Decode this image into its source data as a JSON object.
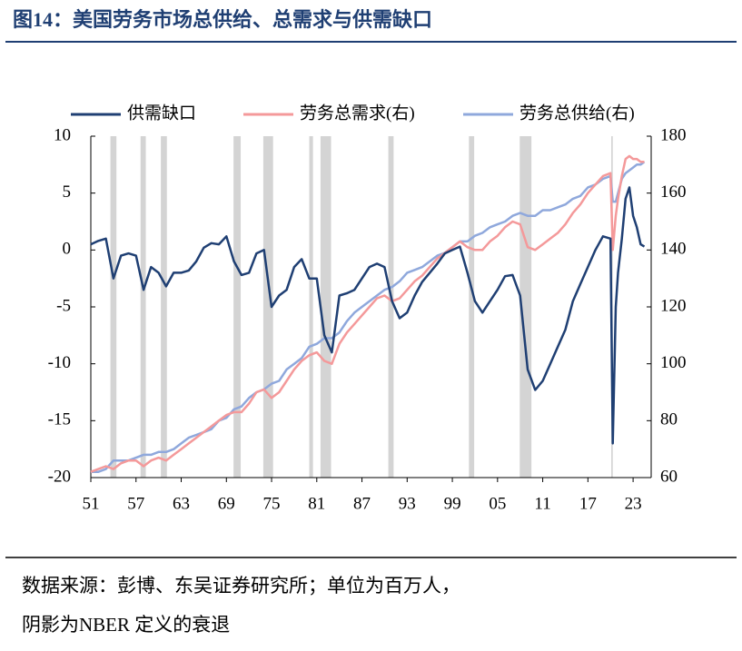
{
  "chart_data": {
    "type": "line",
    "title": "图14：美国劳务市场总供给、总需求与供需缺口",
    "source": "数据来源：彭博、东吴证券研究所；单位为百万人，",
    "source_note": "阴影为NBER 定义的衰退",
    "x": [
      1951,
      1952,
      1953,
      1954,
      1955,
      1956,
      1957,
      1958,
      1959,
      1960,
      1961,
      1962,
      1963,
      1964,
      1965,
      1966,
      1967,
      1968,
      1969,
      1970,
      1971,
      1972,
      1973,
      1974,
      1975,
      1976,
      1977,
      1978,
      1979,
      1980,
      1981,
      1982,
      1983,
      1984,
      1985,
      1986,
      1987,
      1988,
      1989,
      1990,
      1991,
      1992,
      1993,
      1994,
      1995,
      1996,
      1997,
      1998,
      1999,
      2000,
      2001,
      2002,
      2003,
      2004,
      2005,
      2006,
      2007,
      2008,
      2009,
      2010,
      2011,
      2012,
      2013,
      2014,
      2015,
      2016,
      2017,
      2018,
      2019,
      2020,
      2020.3,
      2020.7,
      2021,
      2021.5,
      2022,
      2022.5,
      2023,
      2023.5,
      2024,
      2024.5
    ],
    "series": [
      {
        "name": "供需缺口",
        "color": "#1f3f73",
        "axis": "y",
        "values": [
          0.5,
          0.8,
          1,
          -2.5,
          -0.5,
          -0.3,
          -0.5,
          -3.5,
          -1.5,
          -2,
          -3.2,
          -2,
          -2,
          -1.8,
          -1,
          0.2,
          0.6,
          0.5,
          1.2,
          -1,
          -2.2,
          -2,
          -0.3,
          0,
          -5,
          -4,
          -3.5,
          -1.5,
          -0.8,
          -2.5,
          -2.5,
          -7.5,
          -9,
          -4,
          -3.8,
          -3.5,
          -2.5,
          -1.5,
          -1.2,
          -1.5,
          -4.5,
          -6,
          -5.5,
          -4,
          -2.8,
          -2,
          -1.2,
          -0.3,
          0,
          0.3,
          -2,
          -4.5,
          -5.5,
          -4.5,
          -3.5,
          -2.3,
          -2.2,
          -4,
          -10.5,
          -12.3,
          -11.5,
          -10,
          -8.5,
          -7,
          -4.5,
          -3,
          -1.5,
          0,
          1.2,
          1,
          -17,
          -5,
          -2,
          1,
          4.5,
          5.5,
          3,
          2,
          0.5,
          0.3
        ]
      },
      {
        "name": "劳务总需求(右)",
        "color": "#f4999a",
        "axis": "y2",
        "values": [
          62,
          63,
          64,
          63,
          65,
          66,
          66,
          64,
          66,
          67,
          66,
          68,
          70,
          72,
          74,
          76,
          78,
          80,
          82,
          83,
          83,
          86,
          90,
          91,
          88,
          90,
          94,
          98,
          101,
          103,
          104,
          101,
          100,
          107,
          111,
          114,
          117,
          120,
          123,
          124,
          122,
          123,
          126,
          129,
          131,
          134,
          137,
          139,
          141,
          143,
          141,
          140,
          140,
          143,
          145,
          148,
          150,
          149,
          141,
          140,
          142,
          144,
          146,
          149,
          153,
          156,
          160,
          163,
          166,
          167,
          140,
          152,
          158,
          166,
          172,
          173,
          172,
          172,
          171,
          171
        ]
      },
      {
        "name": "劳务总供给(右)",
        "color": "#8fa8dc",
        "axis": "y2",
        "values": [
          62,
          62,
          63,
          66,
          66,
          66,
          67,
          68,
          68,
          69,
          69,
          70,
          72,
          74,
          75,
          76,
          77,
          80,
          81,
          84,
          85,
          88,
          90,
          91,
          93,
          94,
          98,
          100,
          102,
          106,
          107,
          109,
          109,
          111,
          115,
          118,
          120,
          122,
          124,
          126,
          127,
          129,
          132,
          133,
          134,
          136,
          138,
          139,
          141,
          143,
          143,
          145,
          146,
          148,
          149,
          150,
          152,
          153,
          152,
          152,
          154,
          154,
          155,
          156,
          158,
          159,
          162,
          163,
          165,
          166,
          157,
          157,
          160,
          165,
          167,
          168,
          169,
          170,
          170,
          171
        ]
      }
    ],
    "recessions": [
      [
        1953.6,
        1954.4
      ],
      [
        1957.6,
        1958.3
      ],
      [
        1960.3,
        1961.1
      ],
      [
        1969.95,
        1970.9
      ],
      [
        1973.9,
        1975.2
      ],
      [
        1980.0,
        1980.5
      ],
      [
        1981.5,
        1982.9
      ],
      [
        1990.5,
        1991.2
      ],
      [
        2001.2,
        2001.9
      ],
      [
        2007.95,
        2009.5
      ],
      [
        2020.1,
        2020.3
      ]
    ],
    "xlim": [
      1951,
      2025.4
    ],
    "xticks": [
      {
        "value": 1951,
        "label": "51"
      },
      {
        "value": 1957,
        "label": "57"
      },
      {
        "value": 1963,
        "label": "63"
      },
      {
        "value": 1969,
        "label": "69"
      },
      {
        "value": 1975,
        "label": "75"
      },
      {
        "value": 1981,
        "label": "81"
      },
      {
        "value": 1987,
        "label": "87"
      },
      {
        "value": 1993,
        "label": "93"
      },
      {
        "value": 1999,
        "label": "99"
      },
      {
        "value": 2005,
        "label": "05"
      },
      {
        "value": 2011,
        "label": "11"
      },
      {
        "value": 2017,
        "label": "17"
      },
      {
        "value": 2023,
        "label": "23"
      }
    ],
    "ylim": [
      -20,
      10
    ],
    "yticks": [
      -20,
      -15,
      -10,
      -5,
      0,
      5,
      10
    ],
    "y2lim": [
      60,
      180
    ],
    "y2ticks": [
      60,
      80,
      100,
      120,
      140,
      160,
      180
    ],
    "recession_color": "#d4d4d4"
  }
}
